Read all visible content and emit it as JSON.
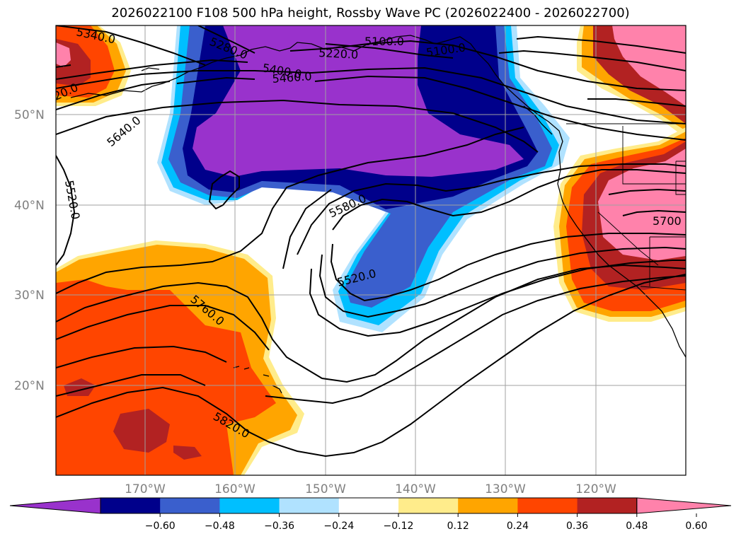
{
  "title": "2026022100 F108 500 hPa height, Rossby Wave PC (2026022400 - 2026022700)",
  "lat_labels": [
    "50°N",
    "40°N",
    "30°N",
    "20°N"
  ],
  "lon_labels": [
    "170°W",
    "160°W",
    "150°W",
    "140°W",
    "130°W",
    "120°W"
  ],
  "contour_labels": [
    "5340.0",
    "5280.0",
    "5100.0",
    "5220.0",
    "5400.0",
    "5460.0",
    "5100.0",
    "20.0",
    "5640.0",
    "5520.0",
    "5580.0",
    "5520.0",
    "5700",
    "5760.0",
    "5820.0"
  ],
  "colorbar": {
    "ticks": [
      "−0.60",
      "−0.48",
      "−0.36",
      "−0.24",
      "−0.12",
      "0.12",
      "0.24",
      "0.36",
      "0.48",
      "0.60"
    ],
    "colors": [
      "#9932cc",
      "#00008b",
      "#3a5fcd",
      "#00bfff",
      "#b0e2ff",
      "#ffffff",
      "#ffec8b",
      "#ffa500",
      "#ff4500",
      "#b22222",
      "#ff82ab"
    ]
  }
}
